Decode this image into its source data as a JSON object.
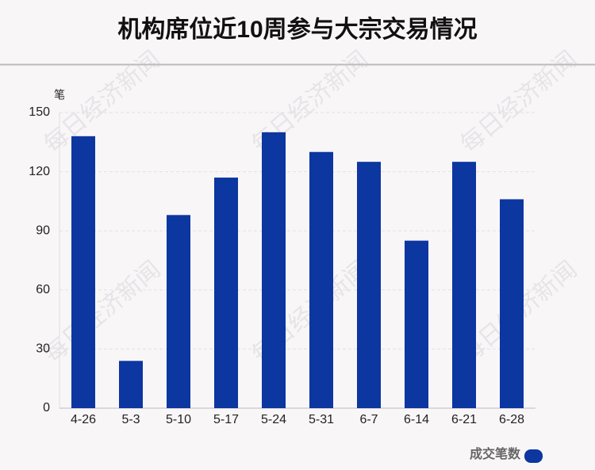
{
  "chart_data": {
    "type": "bar",
    "title": "机构席位近10周参与大宗交易情况",
    "y_label": "笔",
    "categories": [
      "4-26",
      "5-3",
      "5-10",
      "5-17",
      "5-24",
      "5-31",
      "6-7",
      "6-14",
      "6-21",
      "6-28"
    ],
    "series": [
      {
        "name": "成交笔数",
        "color": "#0c36a0",
        "values": [
          138,
          24,
          98,
          117,
          140,
          130,
          125,
          85,
          125,
          106
        ]
      }
    ],
    "ylim": [
      0,
      150
    ],
    "yticks": [
      0,
      30,
      60,
      90,
      120,
      150
    ],
    "grid": true,
    "legend": "bottom-right",
    "watermark": "每日经济新闻"
  }
}
